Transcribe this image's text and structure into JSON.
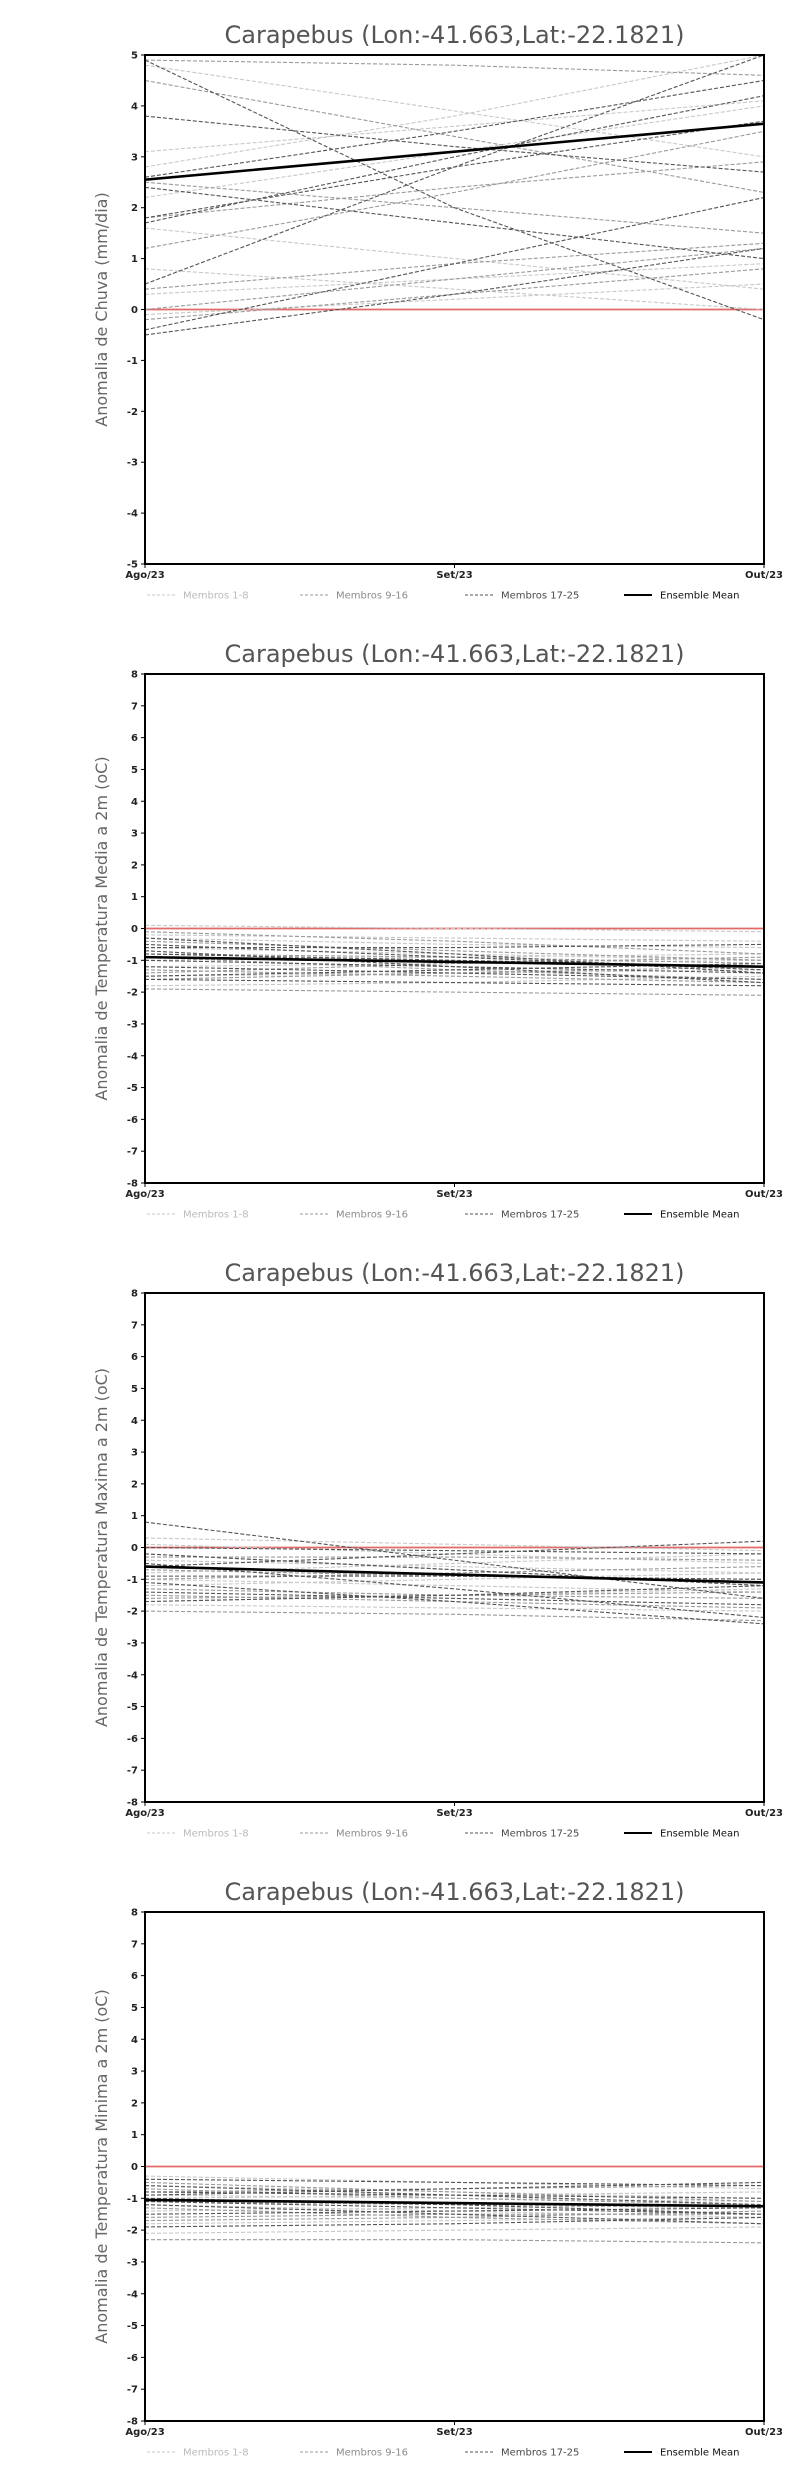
{
  "colors": {
    "zero_line": "#e26a6a",
    "members_1_8": "#c8c8c8",
    "members_9_16": "#9a9a9a",
    "members_17_25": "#555555",
    "ensemble": "#000000"
  },
  "legend": [
    "Membros 1-8",
    "Membros 9-16",
    "Membros 17-25",
    "Ensemble Mean"
  ],
  "chart_data": [
    {
      "type": "line",
      "title": "Carapebus (Lon:-41.663,Lat:-22.1821)",
      "ylabel": "Anomalia de Chuva (mm/dia)",
      "ylim": [
        -5,
        5
      ],
      "yticks": [
        -5,
        -4,
        -3,
        -2,
        -1,
        0,
        1,
        2,
        3,
        4,
        5
      ],
      "categories": [
        "Ago/23",
        "Set/23",
        "Out/23"
      ],
      "reference_line": 0,
      "series": [
        {
          "name": "Membros 1-8",
          "values": [
            [
              3.1,
              3.6,
              4.1
            ],
            [
              2.2,
              3.1,
              4.0
            ],
            [
              0.3,
              0.6,
              0.9
            ],
            [
              -0.1,
              0.2,
              0.5
            ],
            [
              2.8,
              3.8,
              5.0
            ],
            [
              1.6,
              1.0,
              0.4
            ],
            [
              4.8,
              3.9,
              3.0
            ],
            [
              0.8,
              0.4,
              0.0
            ]
          ]
        },
        {
          "name": "Membros 9-16",
          "values": [
            [
              1.8,
              2.4,
              2.9
            ],
            [
              0.4,
              0.9,
              1.3
            ],
            [
              4.5,
              3.4,
              2.3
            ],
            [
              2.5,
              2.0,
              1.5
            ],
            [
              1.2,
              2.3,
              3.5
            ],
            [
              -0.2,
              0.3,
              0.8
            ],
            [
              4.9,
              4.8,
              4.6
            ],
            [
              0.0,
              0.6,
              1.2
            ]
          ]
        },
        {
          "name": "Membros 17-25",
          "values": [
            [
              0.5,
              2.8,
              5.0
            ],
            [
              4.9,
              2.0,
              -0.2
            ],
            [
              -0.5,
              0.3,
              1.2
            ],
            [
              -0.4,
              0.9,
              2.2
            ],
            [
              1.8,
              2.8,
              3.7
            ],
            [
              3.8,
              3.2,
              2.7
            ],
            [
              2.6,
              3.5,
              4.5
            ],
            [
              2.4,
              1.7,
              1.0
            ],
            [
              1.7,
              3.0,
              4.2
            ]
          ]
        },
        {
          "name": "Ensemble Mean",
          "values": [
            2.55,
            3.1,
            3.65
          ]
        }
      ]
    },
    {
      "type": "line",
      "title": "Carapebus (Lon:-41.663,Lat:-22.1821)",
      "ylabel": "Anomalia de Temperatura Media a 2m (oC)",
      "ylim": [
        -8,
        8
      ],
      "yticks": [
        -8,
        -7,
        -6,
        -5,
        -4,
        -3,
        -2,
        -1,
        0,
        1,
        2,
        3,
        4,
        5,
        6,
        7,
        8
      ],
      "categories": [
        "Ago/23",
        "Set/23",
        "Out/23"
      ],
      "reference_line": 0,
      "series": [
        {
          "name": "Membros 1-8",
          "values": [
            [
              0.1,
              0.0,
              -0.1
            ],
            [
              -0.3,
              -0.5,
              -0.6
            ],
            [
              -1.0,
              -0.9,
              -0.8
            ],
            [
              -1.5,
              -1.4,
              -1.3
            ],
            [
              -0.6,
              -0.8,
              -1.0
            ],
            [
              -1.8,
              -1.7,
              -1.5
            ],
            [
              -0.2,
              -0.3,
              -0.4
            ],
            [
              -1.2,
              -1.1,
              -1.0
            ]
          ]
        },
        {
          "name": "Membros 9-16",
          "values": [
            [
              -0.4,
              -0.7,
              -1.0
            ],
            [
              -1.3,
              -1.5,
              -1.7
            ],
            [
              -0.8,
              -0.9,
              -1.1
            ],
            [
              -1.9,
              -2.0,
              -2.1
            ],
            [
              -0.1,
              -0.4,
              -0.8
            ],
            [
              -1.6,
              -1.4,
              -1.2
            ],
            [
              -0.9,
              -1.3,
              -1.6
            ],
            [
              -1.4,
              -1.1,
              -0.9
            ]
          ]
        },
        {
          "name": "Membros 17-25",
          "values": [
            [
              -0.5,
              -0.9,
              -1.3
            ],
            [
              -1.0,
              -1.2,
              -1.4
            ],
            [
              -0.7,
              -1.2,
              -1.7
            ],
            [
              -1.5,
              -1.3,
              -1.1
            ],
            [
              -0.3,
              -0.8,
              -1.4
            ],
            [
              -1.2,
              -1.4,
              -1.6
            ],
            [
              -0.8,
              -1.0,
              -1.2
            ],
            [
              -1.6,
              -1.7,
              -1.8
            ],
            [
              -0.6,
              -0.6,
              -0.5
            ]
          ]
        },
        {
          "name": "Ensemble Mean",
          "values": [
            -0.9,
            -1.05,
            -1.2
          ]
        }
      ]
    },
    {
      "type": "line",
      "title": "Carapebus (Lon:-41.663,Lat:-22.1821)",
      "ylabel": "Anomalia de Temperatura Maxima a 2m (oC)",
      "ylim": [
        -8,
        8
      ],
      "yticks": [
        -8,
        -7,
        -6,
        -5,
        -4,
        -3,
        -2,
        -1,
        0,
        1,
        2,
        3,
        4,
        5,
        6,
        7,
        8
      ],
      "categories": [
        "Ago/23",
        "Set/23",
        "Out/23"
      ],
      "reference_line": 0,
      "series": [
        {
          "name": "Membros 1-8",
          "values": [
            [
              0.3,
              0.1,
              -0.1
            ],
            [
              -0.4,
              -0.6,
              -0.8
            ],
            [
              -1.2,
              -1.0,
              -0.8
            ],
            [
              -1.7,
              -1.5,
              -1.3
            ],
            [
              0.1,
              -0.2,
              -0.5
            ],
            [
              -1.8,
              -1.9,
              -2.0
            ],
            [
              -0.8,
              -0.5,
              -0.2
            ],
            [
              -1.0,
              -1.2,
              -1.4
            ]
          ]
        },
        {
          "name": "Membros 9-16",
          "values": [
            [
              -0.2,
              -0.7,
              -1.2
            ],
            [
              -1.5,
              -1.7,
              -1.9
            ],
            [
              -0.7,
              -0.9,
              -1.0
            ],
            [
              -2.0,
              -2.1,
              -2.3
            ],
            [
              -0.3,
              -0.3,
              -0.4
            ],
            [
              -1.3,
              -1.5,
              -1.6
            ],
            [
              -1.0,
              -0.8,
              -0.6
            ],
            [
              -1.6,
              -1.5,
              -1.4
            ]
          ]
        },
        {
          "name": "Membros 17-25",
          "values": [
            [
              0.8,
              -0.4,
              -1.6
            ],
            [
              -0.5,
              -1.3,
              -2.2
            ],
            [
              -1.1,
              -1.7,
              -2.4
            ],
            [
              -0.6,
              -0.2,
              0.2
            ],
            [
              -1.7,
              -1.5,
              -1.2
            ],
            [
              -0.2,
              -0.7,
              -1.2
            ],
            [
              -0.9,
              -0.9,
              -1.0
            ],
            [
              -1.4,
              -1.6,
              -1.8
            ],
            [
              0.0,
              -0.1,
              -0.2
            ]
          ]
        },
        {
          "name": "Ensemble Mean",
          "values": [
            -0.6,
            -0.85,
            -1.1
          ]
        }
      ]
    },
    {
      "type": "line",
      "title": "Carapebus (Lon:-41.663,Lat:-22.1821)",
      "ylabel": "Anomalia de Temperatura Minima a 2m (oC)",
      "ylim": [
        -8,
        8
      ],
      "yticks": [
        -8,
        -7,
        -6,
        -5,
        -4,
        -3,
        -2,
        -1,
        0,
        1,
        2,
        3,
        4,
        5,
        6,
        7,
        8
      ],
      "categories": [
        "Ago/23",
        "Set/23",
        "Out/23"
      ],
      "reference_line": 0,
      "series": [
        {
          "name": "Membros 1-8",
          "values": [
            [
              -0.3,
              -0.5,
              -0.7
            ],
            [
              -0.9,
              -1.0,
              -1.1
            ],
            [
              -1.4,
              -1.3,
              -1.2
            ],
            [
              -1.8,
              -1.7,
              -1.6
            ],
            [
              -0.6,
              -0.8,
              -1.0
            ],
            [
              -1.2,
              -1.4,
              -1.6
            ],
            [
              -2.1,
              -2.0,
              -1.9
            ],
            [
              -1.0,
              -0.9,
              -0.8
            ]
          ]
        },
        {
          "name": "Membros 9-16",
          "values": [
            [
              -0.5,
              -0.8,
              -1.1
            ],
            [
              -1.1,
              -1.2,
              -1.3
            ],
            [
              -1.6,
              -1.5,
              -1.5
            ],
            [
              -2.3,
              -2.3,
              -2.4
            ],
            [
              -0.8,
              -0.7,
              -0.6
            ],
            [
              -1.3,
              -1.6,
              -1.8
            ],
            [
              -1.7,
              -1.6,
              -1.4
            ],
            [
              -0.7,
              -1.0,
              -1.2
            ]
          ]
        },
        {
          "name": "Membros 17-25",
          "values": [
            [
              -0.6,
              -0.9,
              -1.2
            ],
            [
              -1.0,
              -1.2,
              -1.5
            ],
            [
              -1.5,
              -1.4,
              -1.3
            ],
            [
              -0.8,
              -0.9,
              -1.0
            ],
            [
              -1.2,
              -1.5,
              -1.8
            ],
            [
              -0.4,
              -0.5,
              -0.6
            ],
            [
              -1.9,
              -1.8,
              -1.6
            ],
            [
              -1.1,
              -1.3,
              -1.5
            ],
            [
              -0.9,
              -0.7,
              -0.5
            ]
          ]
        },
        {
          "name": "Ensemble Mean",
          "values": [
            -1.05,
            -1.15,
            -1.25
          ]
        }
      ]
    }
  ]
}
